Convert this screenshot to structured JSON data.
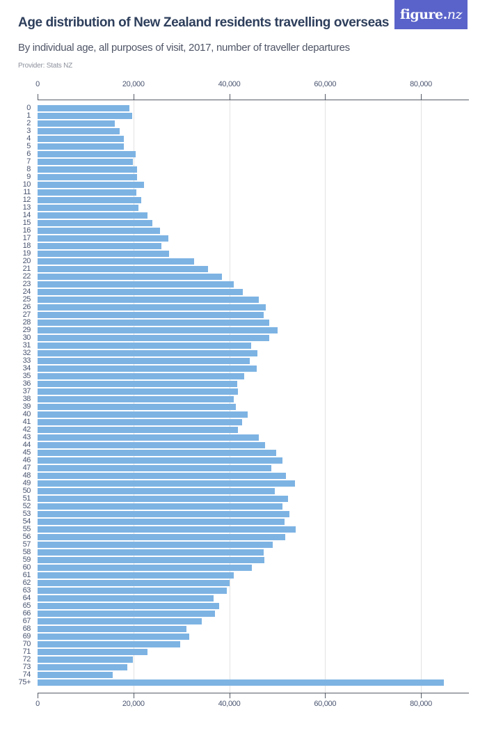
{
  "header": {
    "title": "Age distribution of New Zealand residents travelling overseas",
    "subtitle": "By individual age, all purposes of visit, 2017, number of traveller departures",
    "provider": "Provider: Stats NZ",
    "logo_main": "figure.",
    "logo_suffix": "nz"
  },
  "colors": {
    "bar": "#7db3e3",
    "title": "#2e3f5c",
    "logo_bg": "#5a63c9"
  },
  "chart_data": {
    "type": "bar",
    "orientation": "horizontal",
    "title": "Age distribution of New Zealand residents travelling overseas",
    "subtitle": "By individual age, all purposes of visit, 2017, number of traveller departures",
    "xlabel": "",
    "ylabel": "",
    "xlim": [
      0,
      90000
    ],
    "x_ticks": [
      0,
      20000,
      40000,
      60000,
      80000
    ],
    "x_tick_labels": [
      "0",
      "20,000",
      "40,000",
      "60,000",
      "80,000"
    ],
    "grid": true,
    "legend": null,
    "categories": [
      "0",
      "1",
      "2",
      "3",
      "4",
      "5",
      "6",
      "7",
      "8",
      "9",
      "10",
      "11",
      "12",
      "13",
      "14",
      "15",
      "16",
      "17",
      "18",
      "19",
      "20",
      "21",
      "22",
      "23",
      "24",
      "25",
      "26",
      "27",
      "28",
      "29",
      "30",
      "31",
      "32",
      "33",
      "34",
      "35",
      "36",
      "37",
      "38",
      "39",
      "40",
      "41",
      "42",
      "43",
      "44",
      "45",
      "46",
      "47",
      "48",
      "49",
      "50",
      "51",
      "52",
      "53",
      "54",
      "55",
      "56",
      "57",
      "58",
      "59",
      "60",
      "61",
      "62",
      "63",
      "64",
      "65",
      "66",
      "67",
      "68",
      "69",
      "70",
      "71",
      "72",
      "73",
      "74",
      "75+"
    ],
    "values": [
      19100,
      19700,
      16100,
      17100,
      18000,
      18000,
      20400,
      19900,
      20700,
      20700,
      22200,
      20600,
      21600,
      21000,
      23000,
      24000,
      25500,
      27300,
      25800,
      27400,
      32700,
      35600,
      38500,
      41000,
      42800,
      46200,
      47600,
      47200,
      48400,
      50100,
      48400,
      44600,
      45900,
      44300,
      45700,
      43100,
      41700,
      41800,
      41000,
      41400,
      43800,
      42700,
      41800,
      46200,
      47500,
      49800,
      51100,
      48800,
      51800,
      53700,
      49500,
      52300,
      51100,
      52600,
      51500,
      53900,
      51700,
      49100,
      47200,
      47300,
      44700,
      41000,
      40100,
      39500,
      36700,
      37900,
      37000,
      34300,
      31100,
      31700,
      29800,
      23000,
      19900,
      18700,
      15700,
      84800
    ]
  }
}
